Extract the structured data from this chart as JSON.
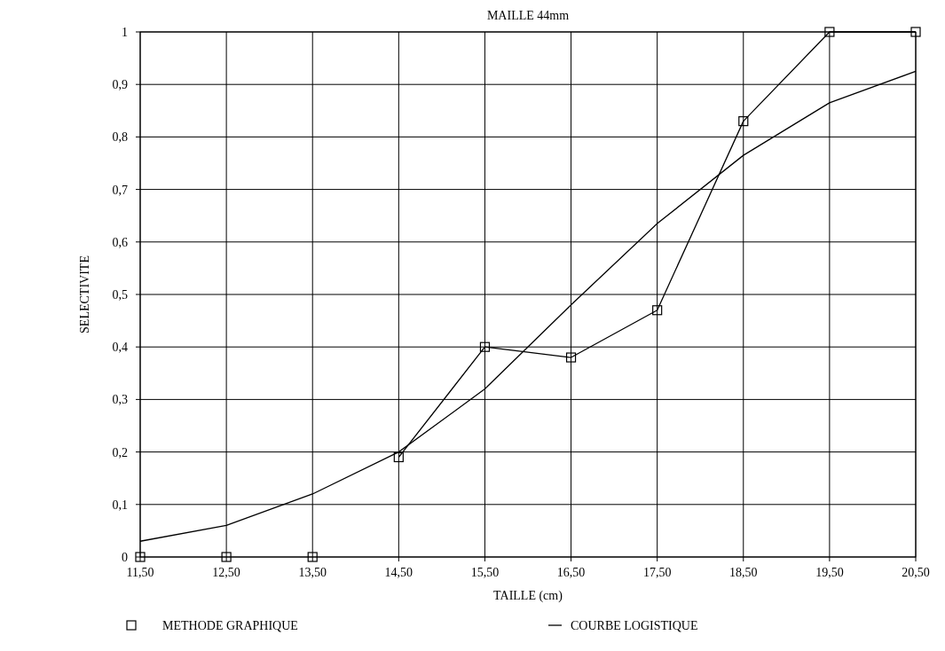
{
  "chart_data": {
    "type": "line",
    "title": "MAILLE 44mm",
    "xlabel": "TAILLE (cm)",
    "ylabel": "SELECTIVITE",
    "x": [
      11.5,
      12.5,
      13.5,
      14.5,
      15.5,
      16.5,
      17.5,
      18.5,
      19.5,
      20.5
    ],
    "series": [
      {
        "type": "scatter",
        "color": "#000000",
        "marker": "square",
        "values": [
          0,
          0,
          0,
          null,
          null,
          null,
          null,
          null,
          null,
          null
        ]
      },
      {
        "type": "line",
        "name": "METHODE GRAPHIQUE",
        "color": "#000000",
        "marker": "square",
        "values": [
          null,
          null,
          null,
          0.19,
          0.4,
          0.38,
          0.47,
          0.83,
          1.0,
          1.0
        ]
      },
      {
        "type": "line",
        "name": "COURBE LOGISTIQUE",
        "color": "#000000",
        "marker": "none",
        "values": [
          0.03,
          0.06,
          0.12,
          0.2,
          0.32,
          0.48,
          0.635,
          0.765,
          0.865,
          0.925
        ]
      }
    ],
    "xlim": [
      11.5,
      20.5
    ],
    "xticks": [
      {
        "value": 11.5,
        "label": "11,50"
      },
      {
        "value": 12.5,
        "label": "12,50"
      },
      {
        "value": 13.5,
        "label": "13,50"
      },
      {
        "value": 14.5,
        "label": "14,50"
      },
      {
        "value": 15.5,
        "label": "15,50"
      },
      {
        "value": 16.5,
        "label": "16,50"
      },
      {
        "value": 17.5,
        "label": "17,50"
      },
      {
        "value": 18.5,
        "label": "18,50"
      },
      {
        "value": 19.5,
        "label": "19,50"
      },
      {
        "value": 20.5,
        "label": "20,50"
      }
    ],
    "ylim": [
      0,
      1
    ],
    "yticks": [
      0,
      {
        "value": 0.1,
        "label": "0,1"
      },
      {
        "value": 0.2,
        "label": "0,2"
      },
      {
        "value": 0.3,
        "label": "0,3"
      },
      {
        "value": 0.4,
        "label": "0,4"
      },
      {
        "value": 0.5,
        "label": "0,5"
      },
      {
        "value": 0.6,
        "label": "0,6"
      },
      {
        "value": 0.7,
        "label": "0,7"
      },
      {
        "value": 0.8,
        "label": "0,8"
      },
      {
        "value": 0.9,
        "label": "0,9"
      },
      1
    ],
    "grid": true,
    "legend": "bottom"
  }
}
